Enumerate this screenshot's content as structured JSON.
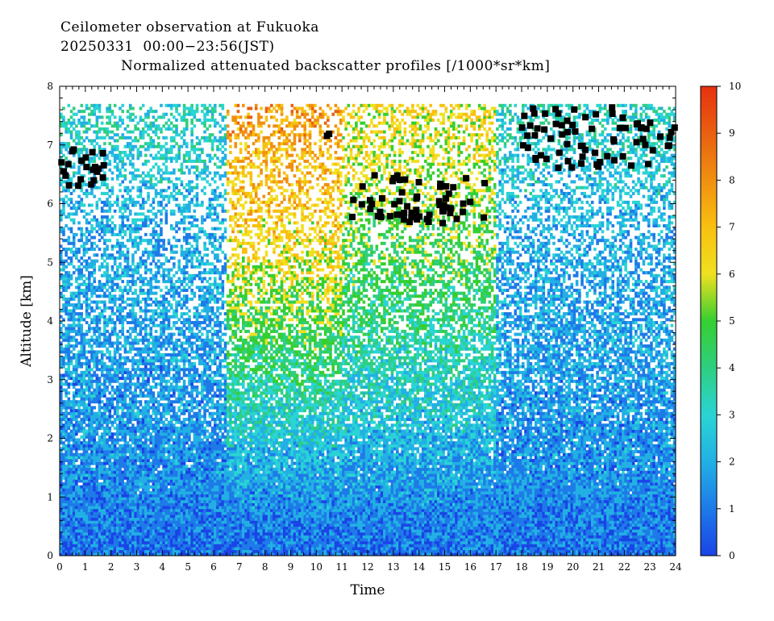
{
  "header": {
    "line1": "Ceilometer observation at Fukuoka",
    "line2": "20250331  00:00−23:56(JST)",
    "line3": "Normalized attenuated backscatter profiles [/1000*sr*km]"
  },
  "chart_data": {
    "type": "heatmap",
    "title": "Normalized attenuated backscatter profiles [/1000*sr*km]",
    "xlabel": "Time",
    "ylabel": "Altitude [km]",
    "xlim": [
      0,
      24
    ],
    "ylim": [
      0,
      8
    ],
    "x_ticks": [
      "0",
      "1",
      "2",
      "3",
      "4",
      "5",
      "6",
      "7",
      "8",
      "9",
      "10",
      "11",
      "12",
      "13",
      "14",
      "15",
      "16",
      "17",
      "18",
      "19",
      "20",
      "21",
      "22",
      "23",
      "24"
    ],
    "y_ticks": [
      "0",
      "1",
      "2",
      "3",
      "4",
      "5",
      "6",
      "7",
      "8"
    ],
    "colorbar": {
      "range": [
        0,
        10
      ],
      "ticks": [
        "0",
        "1",
        "2",
        "3",
        "4",
        "5",
        "6",
        "7",
        "8",
        "9",
        "10"
      ],
      "colors": [
        "#1a44e6",
        "#1e7ae8",
        "#22b0e4",
        "#2ad4d4",
        "#2ecf80",
        "#36cf30",
        "#f0e020",
        "#f8c010",
        "#f09010",
        "#e86010",
        "#e83010"
      ]
    },
    "data_top_altitude_km": 7.65,
    "cloud_regions": [
      {
        "label": "cloud",
        "time_start": 0.0,
        "time_end": 1.8,
        "alt_min": 6.3,
        "alt_max": 6.95
      },
      {
        "label": "cloud",
        "time_start": 10.4,
        "time_end": 10.5,
        "alt_min": 7.15,
        "alt_max": 7.25
      },
      {
        "label": "cloud",
        "time_start": 11.4,
        "time_end": 16.6,
        "alt_min": 5.65,
        "alt_max": 6.5
      },
      {
        "label": "cloud",
        "time_start": 18.0,
        "time_end": 24.0,
        "alt_min": 6.55,
        "alt_max": 7.65
      }
    ],
    "profile_summary": [
      {
        "time_start": 0,
        "time_end": 6.5,
        "boundary_layer_top_km": 1.3,
        "mid_level_value": 2.0
      },
      {
        "time_start": 6.5,
        "time_end": 11,
        "boundary_layer_top_km": 0.9,
        "mid_level_value": 6.5
      },
      {
        "time_start": 11,
        "time_end": 17,
        "boundary_layer_top_km": 0.9,
        "mid_level_value": 5.0
      },
      {
        "time_start": 17,
        "time_end": 24,
        "boundary_layer_top_km": 1.2,
        "mid_level_value": 2.0
      }
    ]
  }
}
